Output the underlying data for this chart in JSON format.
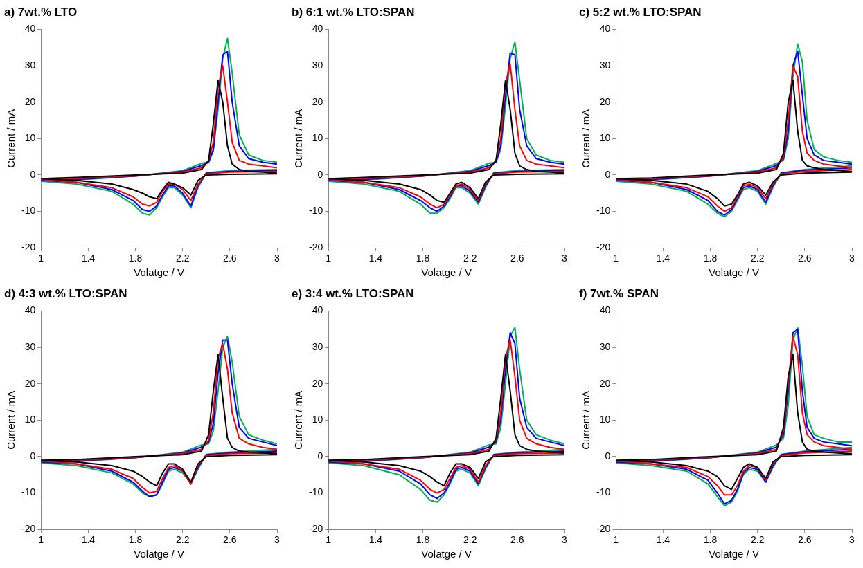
{
  "chart_data": [
    {
      "type": "line",
      "title": "a) 7wt.% LTO",
      "xlabel": "Volatge / V",
      "ylabel": "Current / mA",
      "legend": false,
      "grid": false,
      "xlim": [
        1,
        3
      ],
      "xticks": [
        1,
        1.4,
        1.8,
        2.2,
        2.6,
        3
      ],
      "ylim": [
        -20,
        40
      ],
      "yticks": [
        -20,
        -10,
        0,
        10,
        20,
        30,
        40
      ],
      "x": [
        3,
        2.6,
        2.4,
        2.33,
        2.27,
        2.2,
        2.13,
        2.08,
        2.03,
        1.98,
        1.92,
        1.86,
        1.78,
        1.6,
        1.3,
        1,
        1.3,
        1.8,
        2.2,
        2.36,
        2.42,
        2.46,
        2.5,
        2.54,
        2.58,
        2.62,
        2.68,
        2.76,
        2.88,
        3
      ],
      "series": [
        {
          "color": "#000000",
          "values": [
            0.3,
            0.2,
            0,
            -1.5,
            -5.5,
            -3.5,
            -2.5,
            -2,
            -4,
            -6.5,
            -6,
            -5,
            -4,
            -2.5,
            -1.5,
            -1,
            -0.7,
            0,
            0.5,
            1.5,
            4,
            14,
            26,
            20,
            8,
            3,
            1.5,
            1,
            0.8,
            0.5
          ]
        },
        {
          "color": "#ff0000",
          "values": [
            1,
            0.8,
            0.3,
            -2.5,
            -7,
            -4,
            -2.5,
            -2.5,
            -4.5,
            -7.5,
            -8.5,
            -8,
            -6,
            -3.5,
            -2,
            -1.2,
            -1,
            -0.2,
            0.8,
            2,
            4,
            9,
            24,
            30,
            20,
            9,
            4,
            3,
            2.5,
            2
          ]
        },
        {
          "color": "#0000ff",
          "values": [
            1.2,
            1,
            0.5,
            -3,
            -8.5,
            -5,
            -3,
            -3,
            -5.5,
            -8.5,
            -10,
            -9.5,
            -7,
            -4,
            -2,
            -1.5,
            -1.2,
            -0.3,
            1,
            2.6,
            3.5,
            7,
            20,
            33,
            34,
            20,
            8,
            4.5,
            3.5,
            3
          ]
        },
        {
          "color": "#00b050",
          "values": [
            1.5,
            1.2,
            0.6,
            -3.5,
            -9,
            -5.5,
            -3.5,
            -3.5,
            -6,
            -9,
            -11,
            -10.5,
            -8,
            -4.5,
            -2.5,
            -1.7,
            -1.4,
            -0.3,
            1.2,
            3.2,
            3.5,
            6.5,
            18,
            32,
            37.5,
            28,
            11,
            5.5,
            4,
            3.5
          ]
        }
      ]
    },
    {
      "type": "line",
      "title": "b) 6:1 wt.% LTO:SPAN",
      "xlabel": "Volatge / V",
      "ylabel": "Current / mA",
      "legend": false,
      "grid": false,
      "xlim": [
        1,
        3
      ],
      "xticks": [
        1,
        1.4,
        1.8,
        2.2,
        2.6,
        3
      ],
      "ylim": [
        -20,
        40
      ],
      "yticks": [
        -20,
        -10,
        0,
        10,
        20,
        30,
        40
      ],
      "x": [
        3,
        2.6,
        2.4,
        2.33,
        2.27,
        2.2,
        2.13,
        2.08,
        2.03,
        1.98,
        1.92,
        1.86,
        1.78,
        1.6,
        1.3,
        1,
        1.3,
        1.8,
        2.2,
        2.36,
        2.42,
        2.46,
        2.5,
        2.54,
        2.58,
        2.62,
        2.68,
        2.76,
        2.88,
        3
      ],
      "series": [
        {
          "color": "#000000",
          "values": [
            0.3,
            0.2,
            0,
            -2,
            -6.5,
            -3.5,
            -2,
            -2.5,
            -5,
            -7.5,
            -7,
            -5.5,
            -4,
            -2.5,
            -1.5,
            -1,
            -0.7,
            0,
            0.5,
            1.5,
            4,
            14,
            26,
            18,
            6,
            2.5,
            1.5,
            1,
            0.8,
            0.5
          ]
        },
        {
          "color": "#ff0000",
          "values": [
            1,
            0.8,
            0.3,
            -2.5,
            -7,
            -4,
            -2.5,
            -3,
            -5.5,
            -8,
            -9,
            -8,
            -6,
            -3.5,
            -2,
            -1.2,
            -1,
            -0.2,
            0.8,
            2,
            4,
            10,
            25,
            30.5,
            18,
            8,
            4,
            3,
            2.5,
            2
          ]
        },
        {
          "color": "#0000ff",
          "values": [
            1.2,
            1,
            0.5,
            -3,
            -7.5,
            -4.5,
            -3,
            -3,
            -6,
            -8.5,
            -10,
            -9,
            -7,
            -4,
            -2,
            -1.5,
            -1.2,
            -0.3,
            1,
            2.6,
            3.5,
            8,
            22,
            33.5,
            33,
            18,
            8,
            4.5,
            3.5,
            3
          ]
        },
        {
          "color": "#00b050",
          "values": [
            1.5,
            1.2,
            0.6,
            -3.5,
            -8,
            -5,
            -3.5,
            -3.5,
            -6.5,
            -9,
            -10.5,
            -10.5,
            -8,
            -4.5,
            -2.5,
            -1.7,
            -1.4,
            -0.3,
            1.2,
            3.2,
            3.5,
            7,
            19,
            32,
            36.5,
            26,
            10,
            5.5,
            4,
            3.5
          ]
        }
      ]
    },
    {
      "type": "line",
      "title": "c) 5:2 wt.% LTO:SPAN",
      "xlabel": "Volatge / V",
      "ylabel": "Current / mA",
      "legend": false,
      "grid": false,
      "xlim": [
        1,
        3
      ],
      "xticks": [
        1,
        1.4,
        1.8,
        2.2,
        2.6,
        3
      ],
      "ylim": [
        -20,
        40
      ],
      "yticks": [
        -20,
        -10,
        0,
        10,
        20,
        30,
        40
      ],
      "x": [
        3,
        2.6,
        2.4,
        2.33,
        2.27,
        2.2,
        2.13,
        2.08,
        2.03,
        1.98,
        1.92,
        1.86,
        1.78,
        1.6,
        1.3,
        1,
        1.3,
        1.8,
        2.2,
        2.36,
        2.42,
        2.46,
        2.5,
        2.54,
        2.58,
        2.62,
        2.68,
        2.76,
        2.88,
        3
      ],
      "series": [
        {
          "color": "#000000",
          "values": [
            0.8,
            0.5,
            0,
            -2,
            -5.5,
            -3,
            -2,
            -2.5,
            -5.5,
            -8,
            -8.5,
            -6.5,
            -4.5,
            -2.5,
            -1.5,
            -1,
            -0.8,
            0,
            0.5,
            1.5,
            6,
            20,
            26,
            12,
            4,
            2.5,
            2,
            1.5,
            1.2,
            1
          ]
        },
        {
          "color": "#ff0000",
          "values": [
            1.5,
            1,
            0.3,
            -2.5,
            -6.5,
            -3.5,
            -2.5,
            -3,
            -6,
            -9,
            -10,
            -8.5,
            -6,
            -3.5,
            -2,
            -1.2,
            -1,
            -0.2,
            0.8,
            2,
            5,
            15,
            30,
            27,
            12,
            6,
            4,
            3,
            2.5,
            2
          ]
        },
        {
          "color": "#0000ff",
          "values": [
            2,
            1.3,
            0.5,
            -3,
            -7.5,
            -4,
            -3,
            -3.5,
            -6.5,
            -9.5,
            -11,
            -10,
            -7,
            -4,
            -2,
            -1.5,
            -1.2,
            -0.3,
            1,
            2.6,
            4.5,
            12,
            30,
            34,
            22,
            10,
            5.5,
            4,
            3.5,
            3
          ]
        },
        {
          "color": "#00b050",
          "values": [
            2.5,
            1.5,
            0.6,
            -3.5,
            -8,
            -4.5,
            -3.5,
            -4,
            -7,
            -10,
            -11.5,
            -10.5,
            -8,
            -4.5,
            -2.5,
            -1.7,
            -1.4,
            -0.3,
            1.2,
            3.2,
            4,
            10,
            27,
            36,
            31,
            15,
            7,
            5,
            4,
            3.5
          ]
        }
      ]
    },
    {
      "type": "line",
      "title": "d) 4:3 wt.% LTO:SPAN",
      "xlabel": "Volatge / V",
      "ylabel": "Current / mA",
      "legend": false,
      "grid": false,
      "xlim": [
        1,
        3
      ],
      "xticks": [
        1,
        1.4,
        1.8,
        2.2,
        2.6,
        3
      ],
      "ylim": [
        -20,
        40
      ],
      "yticks": [
        -20,
        -10,
        0,
        10,
        20,
        30,
        40
      ],
      "x": [
        3,
        2.6,
        2.4,
        2.33,
        2.27,
        2.2,
        2.13,
        2.08,
        2.03,
        1.98,
        1.92,
        1.86,
        1.78,
        1.6,
        1.3,
        1,
        1.3,
        1.8,
        2.2,
        2.36,
        2.42,
        2.46,
        2.5,
        2.54,
        2.58,
        2.62,
        2.68,
        2.76,
        2.88,
        3
      ],
      "series": [
        {
          "color": "#000000",
          "values": [
            0.5,
            0.3,
            0,
            -2,
            -7,
            -3.5,
            -2,
            -2,
            -4.5,
            -8,
            -7,
            -5.5,
            -4,
            -2.5,
            -1.5,
            -1,
            -0.8,
            0,
            0.5,
            1.5,
            6,
            18,
            28,
            16,
            5,
            2.5,
            1.5,
            1.2,
            1,
            0.8
          ]
        },
        {
          "color": "#ff0000",
          "values": [
            1,
            0.8,
            0.3,
            -2.5,
            -7.5,
            -4,
            -2.5,
            -3,
            -6,
            -9.5,
            -10,
            -8.5,
            -6,
            -3.5,
            -2,
            -1.2,
            -1,
            -0.2,
            0.8,
            2,
            4.5,
            12,
            27,
            31,
            24,
            12,
            5,
            3.5,
            2.5,
            2
          ]
        },
        {
          "color": "#0000ff",
          "values": [
            1.5,
            1,
            0.5,
            -3,
            -7.5,
            -4,
            -3,
            -3.5,
            -7,
            -10.5,
            -11,
            -9.5,
            -7,
            -4,
            -2,
            -1.5,
            -1.2,
            -0.3,
            1,
            2.6,
            4,
            9,
            23,
            32,
            32,
            20,
            8,
            5,
            4,
            3
          ]
        },
        {
          "color": "#00b050",
          "values": [
            2,
            1.2,
            0.6,
            -3.5,
            -7.5,
            -4.5,
            -3.5,
            -4,
            -7.5,
            -10.5,
            -11,
            -10,
            -7.5,
            -4.5,
            -2.5,
            -1.7,
            -1.4,
            -0.3,
            1.2,
            3.2,
            3.5,
            7,
            18,
            30,
            33,
            26,
            11,
            6,
            4.5,
            3.5
          ]
        }
      ]
    },
    {
      "type": "line",
      "title": "e) 3:4 wt.% LTO:SPAN",
      "xlabel": "Volatge / V",
      "ylabel": "Current / mA",
      "legend": false,
      "grid": false,
      "xlim": [
        1,
        3
      ],
      "xticks": [
        1,
        1.4,
        1.8,
        2.2,
        2.6,
        3
      ],
      "ylim": [
        -20,
        40
      ],
      "yticks": [
        -20,
        -10,
        0,
        10,
        20,
        30,
        40
      ],
      "x": [
        3,
        2.6,
        2.4,
        2.33,
        2.27,
        2.2,
        2.13,
        2.08,
        2.03,
        1.98,
        1.92,
        1.86,
        1.78,
        1.6,
        1.3,
        1,
        1.3,
        1.8,
        2.2,
        2.36,
        2.42,
        2.46,
        2.5,
        2.54,
        2.58,
        2.62,
        2.68,
        2.76,
        2.88,
        3
      ],
      "series": [
        {
          "color": "#000000",
          "values": [
            0.5,
            0.3,
            0,
            -1.5,
            -6,
            -3,
            -2,
            -2,
            -4.5,
            -8,
            -7,
            -5.5,
            -4,
            -2.5,
            -1.5,
            -1,
            -0.8,
            0,
            0.5,
            1.5,
            5,
            16,
            28,
            18,
            6,
            3,
            2,
            1.5,
            1.2,
            1
          ]
        },
        {
          "color": "#ff0000",
          "values": [
            1,
            0.8,
            0.3,
            -2.5,
            -7,
            -3.5,
            -2.5,
            -3,
            -6,
            -9,
            -10,
            -9,
            -6.5,
            -3.5,
            -2,
            -1.2,
            -1,
            -0.2,
            0.8,
            2,
            4.5,
            12,
            27,
            32,
            22,
            10,
            5,
            3.5,
            2.5,
            2
          ]
        },
        {
          "color": "#0000ff",
          "values": [
            1.5,
            1,
            0.5,
            -3,
            -7.5,
            -4,
            -3,
            -3.5,
            -7,
            -10,
            -11.5,
            -10.5,
            -7.5,
            -4,
            -2,
            -1.5,
            -1.2,
            -0.3,
            1,
            2.6,
            4,
            10,
            24,
            34,
            31,
            16,
            8,
            5,
            4,
            3
          ]
        },
        {
          "color": "#00b050",
          "values": [
            2,
            1.2,
            0.6,
            -3.5,
            -8,
            -4.5,
            -3.5,
            -4,
            -7.5,
            -10.5,
            -12.5,
            -12,
            -9,
            -5,
            -2.5,
            -1.7,
            -1.4,
            -0.3,
            1.2,
            3.2,
            3.5,
            8,
            20,
            33,
            35.5,
            24,
            10,
            6,
            4.5,
            3.5
          ]
        }
      ]
    },
    {
      "type": "line",
      "title": "f) 7wt.% SPAN",
      "xlabel": "Volatge / V",
      "ylabel": "Current / mA",
      "legend": false,
      "grid": false,
      "xlim": [
        1,
        3
      ],
      "xticks": [
        1,
        1.4,
        1.8,
        2.2,
        2.6,
        3
      ],
      "ylim": [
        -20,
        40
      ],
      "yticks": [
        -20,
        -10,
        0,
        10,
        20,
        30,
        40
      ],
      "x": [
        3,
        2.6,
        2.4,
        2.33,
        2.27,
        2.2,
        2.13,
        2.08,
        2.03,
        1.98,
        1.92,
        1.86,
        1.78,
        1.6,
        1.3,
        1,
        1.3,
        1.8,
        2.2,
        2.36,
        2.42,
        2.46,
        2.5,
        2.54,
        2.58,
        2.62,
        2.68,
        2.76,
        2.88,
        3
      ],
      "series": [
        {
          "color": "#000000",
          "values": [
            0.5,
            0.3,
            0,
            -1.5,
            -6,
            -3,
            -2,
            -3,
            -6,
            -9,
            -8,
            -5.5,
            -4,
            -2.5,
            -1.5,
            -1,
            -0.8,
            0,
            0.5,
            1.5,
            8,
            22,
            28,
            12,
            4,
            2,
            1.5,
            1.2,
            1,
            0.8
          ]
        },
        {
          "color": "#ff0000",
          "values": [
            1.5,
            1,
            0.3,
            -2,
            -6.5,
            -3,
            -2.5,
            -4,
            -8,
            -10.5,
            -10.5,
            -8,
            -5.5,
            -3,
            -2,
            -1.2,
            -1,
            -0.2,
            0.8,
            2,
            7,
            20,
            33,
            28,
            12,
            6,
            4,
            3,
            2.5,
            2
          ]
        },
        {
          "color": "#0000ff",
          "values": [
            2,
            1.3,
            0.5,
            -2.5,
            -7,
            -3.5,
            -3,
            -4.5,
            -9,
            -12,
            -13,
            -10,
            -6.5,
            -3.5,
            -2,
            -1.5,
            -1.2,
            -0.3,
            1,
            2.6,
            6,
            18,
            34,
            35,
            18,
            8,
            5,
            4,
            3.5,
            3
          ]
        },
        {
          "color": "#00b050",
          "values": [
            2.5,
            1.5,
            0.6,
            -3,
            -7,
            -4,
            -3.5,
            -5,
            -9.5,
            -12.5,
            -13.5,
            -11,
            -7.5,
            -4,
            -2.5,
            -1.7,
            -1.4,
            -0.3,
            1.2,
            3.2,
            5,
            14,
            32,
            35.5,
            25,
            11,
            6,
            5,
            4,
            4
          ]
        }
      ]
    }
  ]
}
